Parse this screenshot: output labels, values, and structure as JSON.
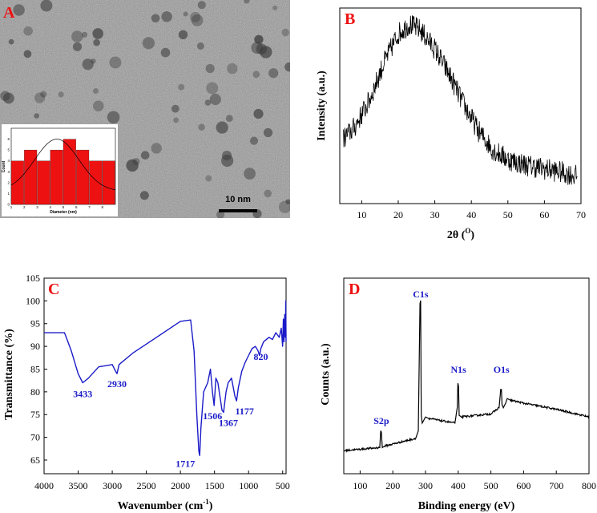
{
  "chart_data": [
    {
      "panel": "A",
      "type": "bar",
      "description_label": "A",
      "scale_bar_label": "10 nm",
      "inset": {
        "type": "bar",
        "xlabel": "Diameter (nm)",
        "ylabel": "Count",
        "categories": [
          1.5,
          2.5,
          3.5,
          4.5,
          5.5,
          6.5,
          7.5,
          8.5
        ],
        "values": [
          4,
          5,
          4,
          5,
          6,
          5,
          4,
          4
        ],
        "xlim": [
          1,
          9
        ],
        "ylim": [
          0,
          7
        ],
        "x_ticks": [
          "1",
          "2",
          "3",
          "4",
          "5",
          "6",
          "7",
          "8"
        ],
        "y_ticks": [
          "0",
          "1",
          "2",
          "3",
          "4",
          "5",
          "6"
        ],
        "fit": "gaussian",
        "bar_color": "#ee1111"
      }
    },
    {
      "panel": "B",
      "type": "line",
      "title": "B",
      "xlabel": "2θ (",
      "xlabel_sup": "O",
      "xlabel_end": ")",
      "ylabel": "Intensity (a.u.)",
      "xlim": [
        4,
        70
      ],
      "x_ticks": [
        "10",
        "20",
        "30",
        "40",
        "50",
        "60",
        "70"
      ],
      "profile_x": [
        4,
        8,
        12,
        16,
        20,
        23,
        26,
        30,
        34,
        38,
        42,
        46,
        50,
        55,
        60,
        65,
        69
      ],
      "profile_y": [
        0.3,
        0.38,
        0.52,
        0.72,
        0.88,
        0.93,
        0.9,
        0.8,
        0.66,
        0.5,
        0.36,
        0.26,
        0.21,
        0.18,
        0.16,
        0.14,
        0.12
      ],
      "line_color": "#000000"
    },
    {
      "panel": "C",
      "type": "line",
      "title": "C",
      "xlabel": "Wavenumber (cm",
      "xlabel_sup": "-1",
      "xlabel_end": ")",
      "ylabel": "Transmittance (%)",
      "xlim": [
        4000,
        450
      ],
      "ylim": [
        62,
        105
      ],
      "x_ticks": [
        "4000",
        "3500",
        "3000",
        "2500",
        "2000",
        "1500",
        "1000",
        "500"
      ],
      "y_ticks": [
        "65",
        "70",
        "75",
        "80",
        "85",
        "90",
        "95",
        "100",
        "105"
      ],
      "x": [
        4000,
        3700,
        3600,
        3500,
        3433,
        3350,
        3200,
        3000,
        2950,
        2930,
        2900,
        2700,
        2500,
        2200,
        2000,
        1850,
        1800,
        1760,
        1730,
        1717,
        1700,
        1660,
        1600,
        1560,
        1530,
        1506,
        1480,
        1450,
        1420,
        1390,
        1367,
        1330,
        1300,
        1250,
        1200,
        1177,
        1150,
        1100,
        1050,
        1000,
        950,
        900,
        860,
        840,
        820,
        780,
        700,
        650,
        600,
        550,
        520,
        500,
        490,
        480,
        470,
        460,
        455,
        450
      ],
      "y": [
        93,
        93,
        89,
        84,
        82,
        83,
        85.5,
        86,
        84.5,
        84,
        86,
        88.5,
        90.5,
        93.5,
        95.5,
        95.8,
        89,
        75,
        67,
        66,
        72,
        80,
        82,
        85,
        80,
        77,
        83,
        82,
        79,
        76,
        75.5,
        80,
        82,
        83,
        79,
        78,
        81,
        84.5,
        86.5,
        88,
        89.5,
        90,
        89,
        88,
        89.5,
        91,
        92,
        91.5,
        93,
        92,
        94,
        90,
        96,
        91,
        97,
        92,
        100,
        91
      ],
      "annotations": [
        {
          "text": "3433",
          "x": 3433,
          "y": 82
        },
        {
          "text": "2930",
          "x": 2930,
          "y": 84
        },
        {
          "text": "1717",
          "x": 1717,
          "y": 66
        },
        {
          "text": "1506",
          "x": 1506,
          "y": 77
        },
        {
          "text": "1367",
          "x": 1367,
          "y": 75.5
        },
        {
          "text": "1177",
          "x": 1177,
          "y": 78
        },
        {
          "text": "820",
          "x": 820,
          "y": 89.5
        }
      ],
      "line_color": "#1a1ac8"
    },
    {
      "panel": "D",
      "type": "line",
      "title": "D",
      "xlabel": "Binding energy (eV)",
      "ylabel": "Counts (a.u.)",
      "xlim": [
        50,
        800
      ],
      "x_ticks": [
        "100",
        "200",
        "300",
        "400",
        "500",
        "600",
        "700",
        "800"
      ],
      "x": [
        50,
        160,
        163,
        165,
        168,
        175,
        270,
        278,
        283,
        285,
        287,
        290,
        300,
        310,
        390,
        397,
        399,
        401,
        403,
        410,
        500,
        525,
        530,
        532,
        534,
        538,
        545,
        550,
        560,
        600,
        700,
        800
      ],
      "y": [
        0.02,
        0.04,
        0.15,
        0.14,
        0.04,
        0.05,
        0.1,
        0.15,
        0.98,
        1.0,
        0.25,
        0.2,
        0.24,
        0.23,
        0.2,
        0.3,
        0.46,
        0.44,
        0.25,
        0.24,
        0.26,
        0.3,
        0.42,
        0.42,
        0.32,
        0.3,
        0.33,
        0.36,
        0.35,
        0.33,
        0.29,
        0.24
      ],
      "annotations": [
        {
          "text": "S2p",
          "x": 165
        },
        {
          "text": "C1s",
          "x": 285
        },
        {
          "text": "N1s",
          "x": 401
        },
        {
          "text": "O1s",
          "x": 532
        }
      ],
      "label_color": "#1a1ac8",
      "line_color": "#000000"
    }
  ]
}
